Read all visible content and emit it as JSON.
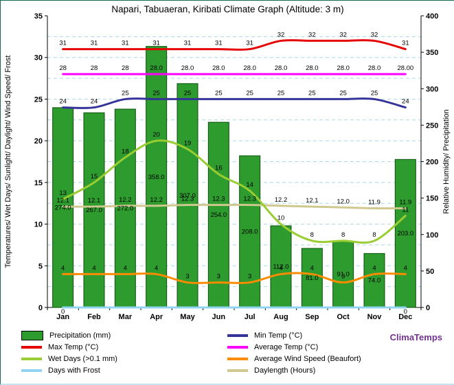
{
  "title": "Napari, Tabuaeran, Kiribati Climate Graph (Altitude: 3 m)",
  "y_axis_left": {
    "label": "Temperatures/ Wet Days/ Sunlight/ Daylight/ Wind Speed/ Frost",
    "min": 0,
    "max": 35,
    "tick_step": 5
  },
  "y_axis_right": {
    "label": "Relative Humidity/ Precipitation",
    "min": 0,
    "max": 400,
    "tick_step": 50
  },
  "chart_data": {
    "type": "combo-bar-line",
    "title": "Napari, Tabuaeran, Kiribati Climate Graph (Altitude: 3 m)",
    "categories": [
      "Jan",
      "Feb",
      "Mar",
      "Apr",
      "May",
      "Jun",
      "Jul",
      "Aug",
      "Sep",
      "Oct",
      "Nov",
      "Dec"
    ],
    "ylim_left": [
      0,
      35
    ],
    "ylim_right": [
      0,
      400
    ],
    "grid": "dashed horizontal every 2.5 units",
    "colors": {
      "grid": "#a6d8e7",
      "axis": "#000000"
    },
    "series": [
      {
        "name": "Precipitation (mm)",
        "type": "bar",
        "axis": "right",
        "color": "#2e9b2e",
        "border_color": "#0b4f0b",
        "values": [
          274,
          267,
          272,
          358,
          307,
          254,
          208,
          112,
          81,
          91,
          74,
          203
        ],
        "labels": [
          "274.0",
          "267.0",
          "272.0",
          "358.0",
          "307.0",
          "254.0",
          "208.0",
          "112.0",
          "81.0",
          "91.0",
          "74.0",
          "203.0"
        ]
      },
      {
        "name": "Max Temp (°C)",
        "type": "line",
        "axis": "left",
        "color": "#e60000",
        "values": [
          31,
          31,
          31,
          31,
          31,
          31,
          31,
          32,
          32,
          32,
          32,
          31
        ],
        "labels": [
          "31",
          "31",
          "31",
          "31",
          "31",
          "31",
          "31",
          "32",
          "32",
          "32",
          "32",
          "31"
        ]
      },
      {
        "name": "Average Temp (°C)",
        "type": "line",
        "axis": "left",
        "color": "#ff00ff",
        "values": [
          28,
          28,
          28,
          28,
          28,
          28,
          28,
          28,
          28,
          28,
          28,
          28
        ],
        "labels": [
          "28",
          "28",
          "28",
          "28.0",
          "28.0",
          "28.0",
          "28.0",
          "28.0",
          "28.0",
          "28.0",
          "28.0",
          "28.00"
        ]
      },
      {
        "name": "Min Temp (°C)",
        "type": "line",
        "axis": "left",
        "color": "#333399",
        "values": [
          24,
          24,
          25,
          25,
          25,
          25,
          25,
          25,
          25,
          25,
          25,
          24
        ],
        "labels": [
          "24",
          "24",
          "25",
          "25",
          "25",
          "25",
          "25",
          "25",
          "25",
          "25",
          "25",
          "24"
        ]
      },
      {
        "name": "Wet Days (>0.1 mm)",
        "type": "line",
        "axis": "left",
        "color": "#9acd32",
        "values": [
          13,
          15,
          18,
          20,
          19,
          16,
          14,
          10,
          8,
          8,
          8,
          11
        ],
        "labels": [
          "13",
          "15",
          "18",
          "20",
          "19",
          "16",
          "14",
          "10",
          "8",
          "8",
          "8",
          "11"
        ]
      },
      {
        "name": "Average Wind Speed (Beaufort)",
        "type": "line",
        "axis": "left",
        "color": "#ff8c00",
        "values": [
          4,
          4,
          4,
          4,
          3,
          3,
          3,
          4,
          4,
          3,
          4,
          4
        ],
        "labels": [
          "4",
          "4",
          "4",
          "4",
          "3",
          "3",
          "3",
          "4",
          "4",
          "3",
          "4",
          "4"
        ]
      },
      {
        "name": "Daylength (Hours)",
        "type": "line",
        "axis": "left",
        "color": "#cfc98f",
        "values": [
          12.1,
          12.1,
          12.2,
          12.2,
          12.3,
          12.3,
          12.3,
          12.2,
          12.1,
          12.0,
          11.9,
          11.9
        ],
        "labels": [
          "12.1",
          "12.1",
          "12.2",
          "12.2",
          "12.3",
          "12.3",
          "12.3",
          "12.2",
          "12.1",
          "12.0",
          "11.9",
          "11.9"
        ]
      },
      {
        "name": "Days with Frost",
        "type": "line",
        "axis": "left",
        "color": "#8fd4f0",
        "values": [
          0,
          0,
          0,
          0,
          0,
          0,
          0,
          0,
          0,
          0,
          0,
          0
        ],
        "labels": [
          "0",
          "",
          "",
          "",
          "",
          "",
          "",
          "",
          "",
          "",
          "",
          "0"
        ]
      }
    ]
  },
  "legend": {
    "columns": [
      [
        {
          "label": "Precipitation (mm)",
          "color": "#2e9b2e",
          "swatch": "bar"
        },
        {
          "label": "Max Temp (°C)",
          "color": "#e60000",
          "swatch": "line"
        },
        {
          "label": "Wet Days (>0.1 mm)",
          "color": "#9acd32",
          "swatch": "line"
        },
        {
          "label": "Days with Frost",
          "color": "#8fd4f0",
          "swatch": "line"
        }
      ],
      [
        {
          "label": "Min Temp (°C)",
          "color": "#333399",
          "swatch": "line"
        },
        {
          "label": "Average Temp (°C)",
          "color": "#ff00ff",
          "swatch": "line"
        },
        {
          "label": "Average Wind Speed (Beaufort)",
          "color": "#ff8c00",
          "swatch": "line"
        },
        {
          "label": "Daylength (Hours)",
          "color": "#cfc98f",
          "swatch": "line"
        }
      ]
    ]
  },
  "branding": {
    "text": "ClimaTemps",
    "color": "#73328f"
  }
}
